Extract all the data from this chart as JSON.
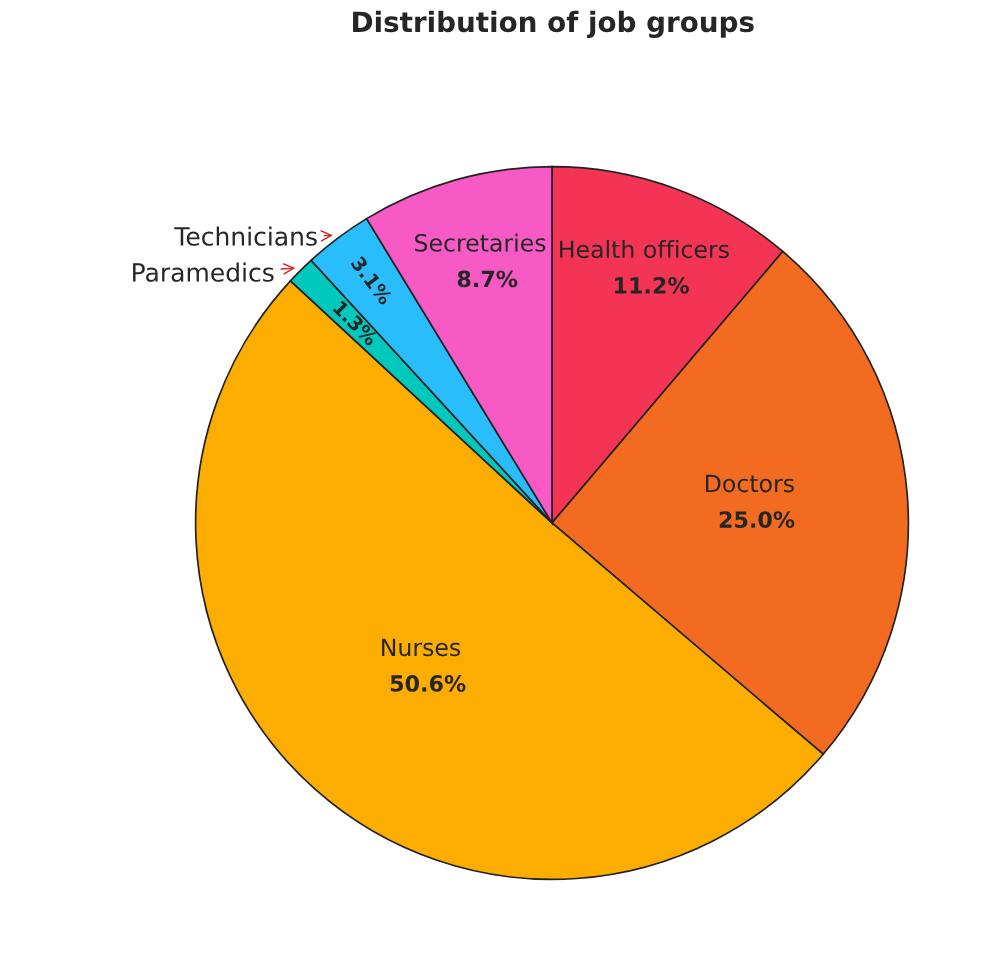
{
  "chart_data": {
    "type": "pie",
    "title": "Distribution of job groups",
    "categories": [
      "Health officers",
      "Doctors",
      "Nurses",
      "Paramedics",
      "Technicians",
      "Secretaries"
    ],
    "values": [
      11.2,
      25.0,
      50.6,
      1.3,
      3.1,
      8.7
    ],
    "colors": [
      "#f43455",
      "#f26b21",
      "#fdac00",
      "#00c8bd",
      "#29bdfd",
      "#f85ac5"
    ],
    "value_labels": [
      "11.2%",
      "25.0%",
      "50.6%",
      "1.3%",
      "3.1%",
      "8.7%"
    ],
    "legend": false
  }
}
